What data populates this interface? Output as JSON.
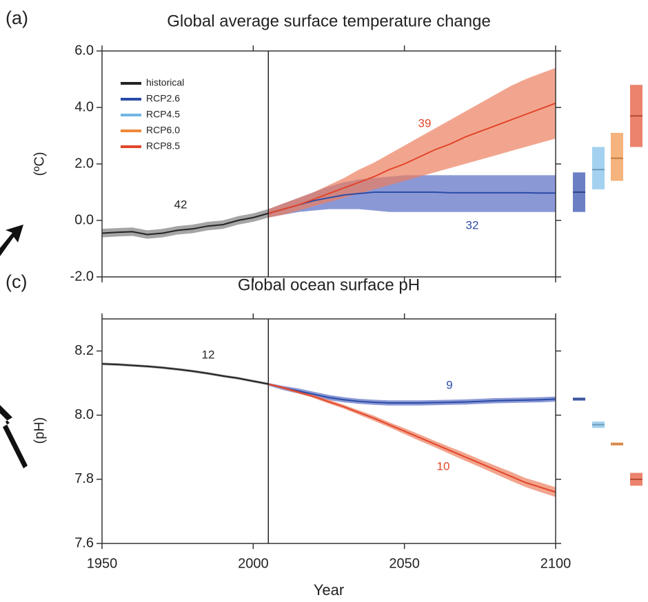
{
  "chart_data": [
    {
      "type": "line",
      "panel_label": "(a)",
      "title": "Global average surface temperature change",
      "ylabel": "(ºC)",
      "xlim": [
        1950,
        2100
      ],
      "xticks": [
        1950,
        2000,
        2050,
        2100
      ],
      "xtick_labels": false,
      "ylim": [
        -2,
        6
      ],
      "yticks": [
        {
          "value": -2,
          "label": "-2.0"
        },
        {
          "value": 0,
          "label": "0.0"
        },
        {
          "value": 2,
          "label": "2.0"
        },
        {
          "value": 4,
          "label": "4.0"
        },
        {
          "value": 6,
          "label": "6.0"
        }
      ],
      "vline_x": 2005,
      "legend": "upper left",
      "series": [
        {
          "name": "historical",
          "color": "#222222",
          "band_color": "#7f7f7f",
          "x": [
            1950,
            1955,
            1960,
            1965,
            1970,
            1975,
            1980,
            1985,
            1990,
            1995,
            2000,
            2005
          ],
          "values": [
            -0.45,
            -0.42,
            -0.4,
            -0.5,
            -0.45,
            -0.35,
            -0.3,
            -0.2,
            -0.15,
            0.0,
            0.1,
            0.25
          ],
          "lower": [
            -0.6,
            -0.57,
            -0.55,
            -0.65,
            -0.6,
            -0.5,
            -0.45,
            -0.35,
            -0.3,
            -0.15,
            -0.05,
            0.1
          ],
          "upper": [
            -0.3,
            -0.27,
            -0.25,
            -0.35,
            -0.3,
            -0.2,
            -0.15,
            -0.05,
            0.0,
            0.15,
            0.25,
            0.4
          ]
        },
        {
          "name": "RCP2.6",
          "color": "#2a4ca6",
          "band_color": "#5a6cc4",
          "x": [
            2005,
            2010,
            2015,
            2020,
            2025,
            2030,
            2035,
            2040,
            2045,
            2050,
            2055,
            2060,
            2065,
            2070,
            2075,
            2080,
            2085,
            2090,
            2095,
            2100
          ],
          "values": [
            0.25,
            0.4,
            0.55,
            0.7,
            0.8,
            0.9,
            0.95,
            1.0,
            1.0,
            1.0,
            1.0,
            1.0,
            0.98,
            0.98,
            0.98,
            0.98,
            0.98,
            0.98,
            0.97,
            0.97
          ],
          "lower": [
            0.1,
            0.2,
            0.3,
            0.35,
            0.4,
            0.4,
            0.4,
            0.35,
            0.3,
            0.3,
            0.3,
            0.3,
            0.3,
            0.3,
            0.3,
            0.3,
            0.3,
            0.3,
            0.3,
            0.3
          ],
          "upper": [
            0.4,
            0.6,
            0.8,
            1.0,
            1.2,
            1.35,
            1.45,
            1.5,
            1.55,
            1.6,
            1.6,
            1.6,
            1.6,
            1.6,
            1.6,
            1.6,
            1.6,
            1.6,
            1.6,
            1.6
          ]
        },
        {
          "name": "RCP4.5",
          "color": "#72b6e4"
        },
        {
          "name": "RCP6.0",
          "color": "#f0883a"
        },
        {
          "name": "RCP8.5",
          "color": "#e2452a",
          "band_color": "#ec7f5e",
          "x": [
            2005,
            2010,
            2015,
            2020,
            2025,
            2030,
            2035,
            2040,
            2045,
            2050,
            2055,
            2060,
            2065,
            2070,
            2075,
            2080,
            2085,
            2090,
            2095,
            2100
          ],
          "values": [
            0.25,
            0.4,
            0.55,
            0.75,
            0.95,
            1.15,
            1.35,
            1.55,
            1.8,
            2.0,
            2.25,
            2.5,
            2.7,
            2.95,
            3.15,
            3.35,
            3.55,
            3.75,
            3.95,
            4.15
          ],
          "lower": [
            0.1,
            0.2,
            0.35,
            0.5,
            0.65,
            0.8,
            0.95,
            1.1,
            1.25,
            1.4,
            1.55,
            1.7,
            1.85,
            2.0,
            2.15,
            2.3,
            2.45,
            2.6,
            2.75,
            2.9
          ],
          "upper": [
            0.4,
            0.6,
            0.8,
            1.0,
            1.25,
            1.5,
            1.8,
            2.05,
            2.35,
            2.65,
            2.95,
            3.25,
            3.55,
            3.85,
            4.15,
            4.45,
            4.75,
            5.0,
            5.2,
            5.4
          ]
        }
      ],
      "range_bars": [
        {
          "color": "#3a55b0",
          "mean": 1.0,
          "low": 0.3,
          "high": 1.7
        },
        {
          "color": "#86c2ea",
          "mean": 1.8,
          "low": 1.1,
          "high": 2.6
        },
        {
          "color": "#f29a52",
          "mean": 2.2,
          "low": 1.4,
          "high": 3.1
        },
        {
          "color": "#e45a3c",
          "mean": 3.7,
          "low": 2.6,
          "high": 4.8
        }
      ],
      "annotations": [
        {
          "text": "42",
          "color": "#222222"
        },
        {
          "text": "39",
          "color": "#e2452a"
        },
        {
          "text": "32",
          "color": "#2a4ca6"
        }
      ]
    },
    {
      "type": "line",
      "panel_label": "(c)",
      "title": "Global ocean surface pH",
      "ylabel": "(pH)",
      "xlabel": "Year",
      "xlim": [
        1950,
        2100
      ],
      "xticks": [
        1950,
        2000,
        2050,
        2100
      ],
      "ylim": [
        7.6,
        8.3
      ],
      "yticks": [
        7.6,
        7.8,
        {
          "value": 8,
          "label": "8.0"
        },
        8.2
      ],
      "vline_x": 2005,
      "series": [
        {
          "color": "#222222",
          "band_color": "#7f7f7f",
          "x": [
            1950,
            1955,
            1960,
            1965,
            1970,
            1975,
            1980,
            1985,
            1990,
            1995,
            2000,
            2005
          ],
          "values": [
            8.16,
            8.158,
            8.155,
            8.152,
            8.148,
            8.143,
            8.137,
            8.13,
            8.122,
            8.115,
            8.106,
            8.097
          ],
          "lower": [
            8.156,
            8.154,
            8.151,
            8.148,
            8.144,
            8.139,
            8.133,
            8.126,
            8.118,
            8.111,
            8.102,
            8.093
          ],
          "upper": [
            8.164,
            8.162,
            8.159,
            8.156,
            8.152,
            8.147,
            8.141,
            8.134,
            8.126,
            8.119,
            8.11,
            8.101
          ]
        },
        {
          "color": "#2a4ca6",
          "band_color": "#5a6cc4",
          "x": [
            2005,
            2010,
            2015,
            2020,
            2025,
            2030,
            2035,
            2040,
            2045,
            2050,
            2055,
            2060,
            2065,
            2070,
            2075,
            2080,
            2085,
            2090,
            2095,
            2100
          ],
          "values": [
            8.097,
            8.085,
            8.075,
            8.065,
            8.055,
            8.048,
            8.043,
            8.04,
            8.038,
            8.038,
            8.038,
            8.039,
            8.04,
            8.041,
            8.043,
            8.045,
            8.046,
            8.047,
            8.048,
            8.05
          ],
          "lower": [
            8.092,
            8.078,
            8.067,
            8.057,
            8.047,
            8.04,
            8.035,
            8.032,
            8.03,
            8.03,
            8.03,
            8.031,
            8.032,
            8.033,
            8.035,
            8.037,
            8.038,
            8.039,
            8.04,
            8.042
          ],
          "upper": [
            8.1,
            8.091,
            8.083,
            8.073,
            8.063,
            8.056,
            8.051,
            8.048,
            8.046,
            8.046,
            8.046,
            8.047,
            8.048,
            8.049,
            8.051,
            8.053,
            8.054,
            8.055,
            8.056,
            8.058
          ]
        },
        {
          "color": "#e2452a",
          "band_color": "#ec7f5e",
          "x": [
            2005,
            2010,
            2015,
            2020,
            2025,
            2030,
            2035,
            2040,
            2045,
            2050,
            2055,
            2060,
            2065,
            2070,
            2075,
            2080,
            2085,
            2090,
            2095,
            2100
          ],
          "values": [
            8.097,
            8.085,
            8.072,
            8.058,
            8.042,
            8.026,
            8.008,
            7.99,
            7.97,
            7.95,
            7.93,
            7.91,
            7.89,
            7.87,
            7.85,
            7.83,
            7.81,
            7.79,
            7.775,
            7.76
          ],
          "lower": [
            8.094,
            8.081,
            8.067,
            8.053,
            8.036,
            8.02,
            8.001,
            7.982,
            7.962,
            7.941,
            7.92,
            7.9,
            7.879,
            7.858,
            7.838,
            7.817,
            7.796,
            7.776,
            7.76,
            7.745
          ],
          "upper": [
            8.1,
            8.089,
            8.077,
            8.063,
            8.048,
            8.032,
            8.015,
            7.998,
            7.978,
            7.959,
            7.94,
            7.92,
            7.901,
            7.882,
            7.862,
            7.843,
            7.824,
            7.804,
            7.79,
            7.775
          ]
        }
      ],
      "range_bars": [
        {
          "color": "#3a55b0",
          "mean": 8.05,
          "low": 8.045,
          "high": 8.055
        },
        {
          "color": "#86c2ea",
          "mean": 7.97,
          "low": 7.96,
          "high": 7.98
        },
        {
          "color": "#f29a52",
          "mean": 7.91,
          "low": 7.905,
          "high": 7.915
        },
        {
          "color": "#e45a3c",
          "mean": 7.8,
          "low": 7.78,
          "high": 7.82
        }
      ],
      "annotations": [
        {
          "text": "12",
          "color": "#222222"
        },
        {
          "text": "9",
          "color": "#2a4ca6"
        },
        {
          "text": "10",
          "color": "#e2452a"
        }
      ]
    }
  ]
}
